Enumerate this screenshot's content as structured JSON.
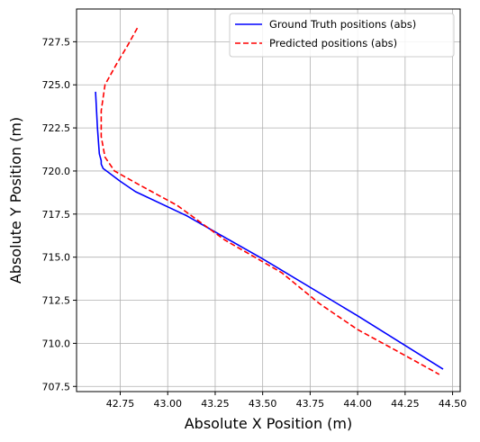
{
  "chart_data": {
    "type": "line",
    "xlabel": "Absolute X Position (m)",
    "ylabel": "Absolute Y Position (m)",
    "xlim": [
      42.52,
      44.54
    ],
    "ylim": [
      707.2,
      729.4
    ],
    "grid": true,
    "legend_position": "top-right",
    "x_ticks": [
      42.75,
      43.0,
      43.25,
      43.5,
      43.75,
      44.0,
      44.25,
      44.5
    ],
    "x_tick_labels": [
      "42.75",
      "43.00",
      "43.25",
      "43.50",
      "43.75",
      "44.00",
      "44.25",
      "44.50"
    ],
    "y_ticks": [
      707.5,
      710.0,
      712.5,
      715.0,
      717.5,
      720.0,
      722.5,
      725.0,
      727.5
    ],
    "y_tick_labels": [
      "707.5",
      "710.0",
      "712.5",
      "715.0",
      "717.5",
      "720.0",
      "722.5",
      "725.0",
      "727.5"
    ],
    "series": [
      {
        "name": "Ground Truth positions (abs)",
        "color": "#0000ff",
        "style": "solid",
        "x": [
          42.62,
          42.63,
          42.64,
          42.65,
          42.65,
          42.66,
          42.69,
          42.75,
          42.83,
          43.1,
          43.5,
          44.0,
          44.45
        ],
        "y": [
          724.6,
          722.5,
          721.0,
          720.6,
          720.4,
          720.15,
          719.9,
          719.4,
          718.8,
          717.4,
          714.9,
          711.6,
          708.5
        ]
      },
      {
        "name": "Predicted positions (abs)",
        "color": "#ff0000",
        "style": "dashed",
        "x": [
          42.84,
          42.79,
          42.73,
          42.67,
          42.65,
          42.65,
          42.67,
          42.72,
          42.85,
          43.05,
          43.3,
          43.6,
          43.8,
          44.0,
          44.2,
          44.43
        ],
        "y": [
          728.3,
          727.3,
          726.2,
          725.0,
          723.5,
          722.0,
          720.8,
          720.0,
          719.2,
          718.0,
          716.0,
          714.1,
          712.3,
          710.8,
          709.6,
          708.2
        ]
      }
    ]
  }
}
